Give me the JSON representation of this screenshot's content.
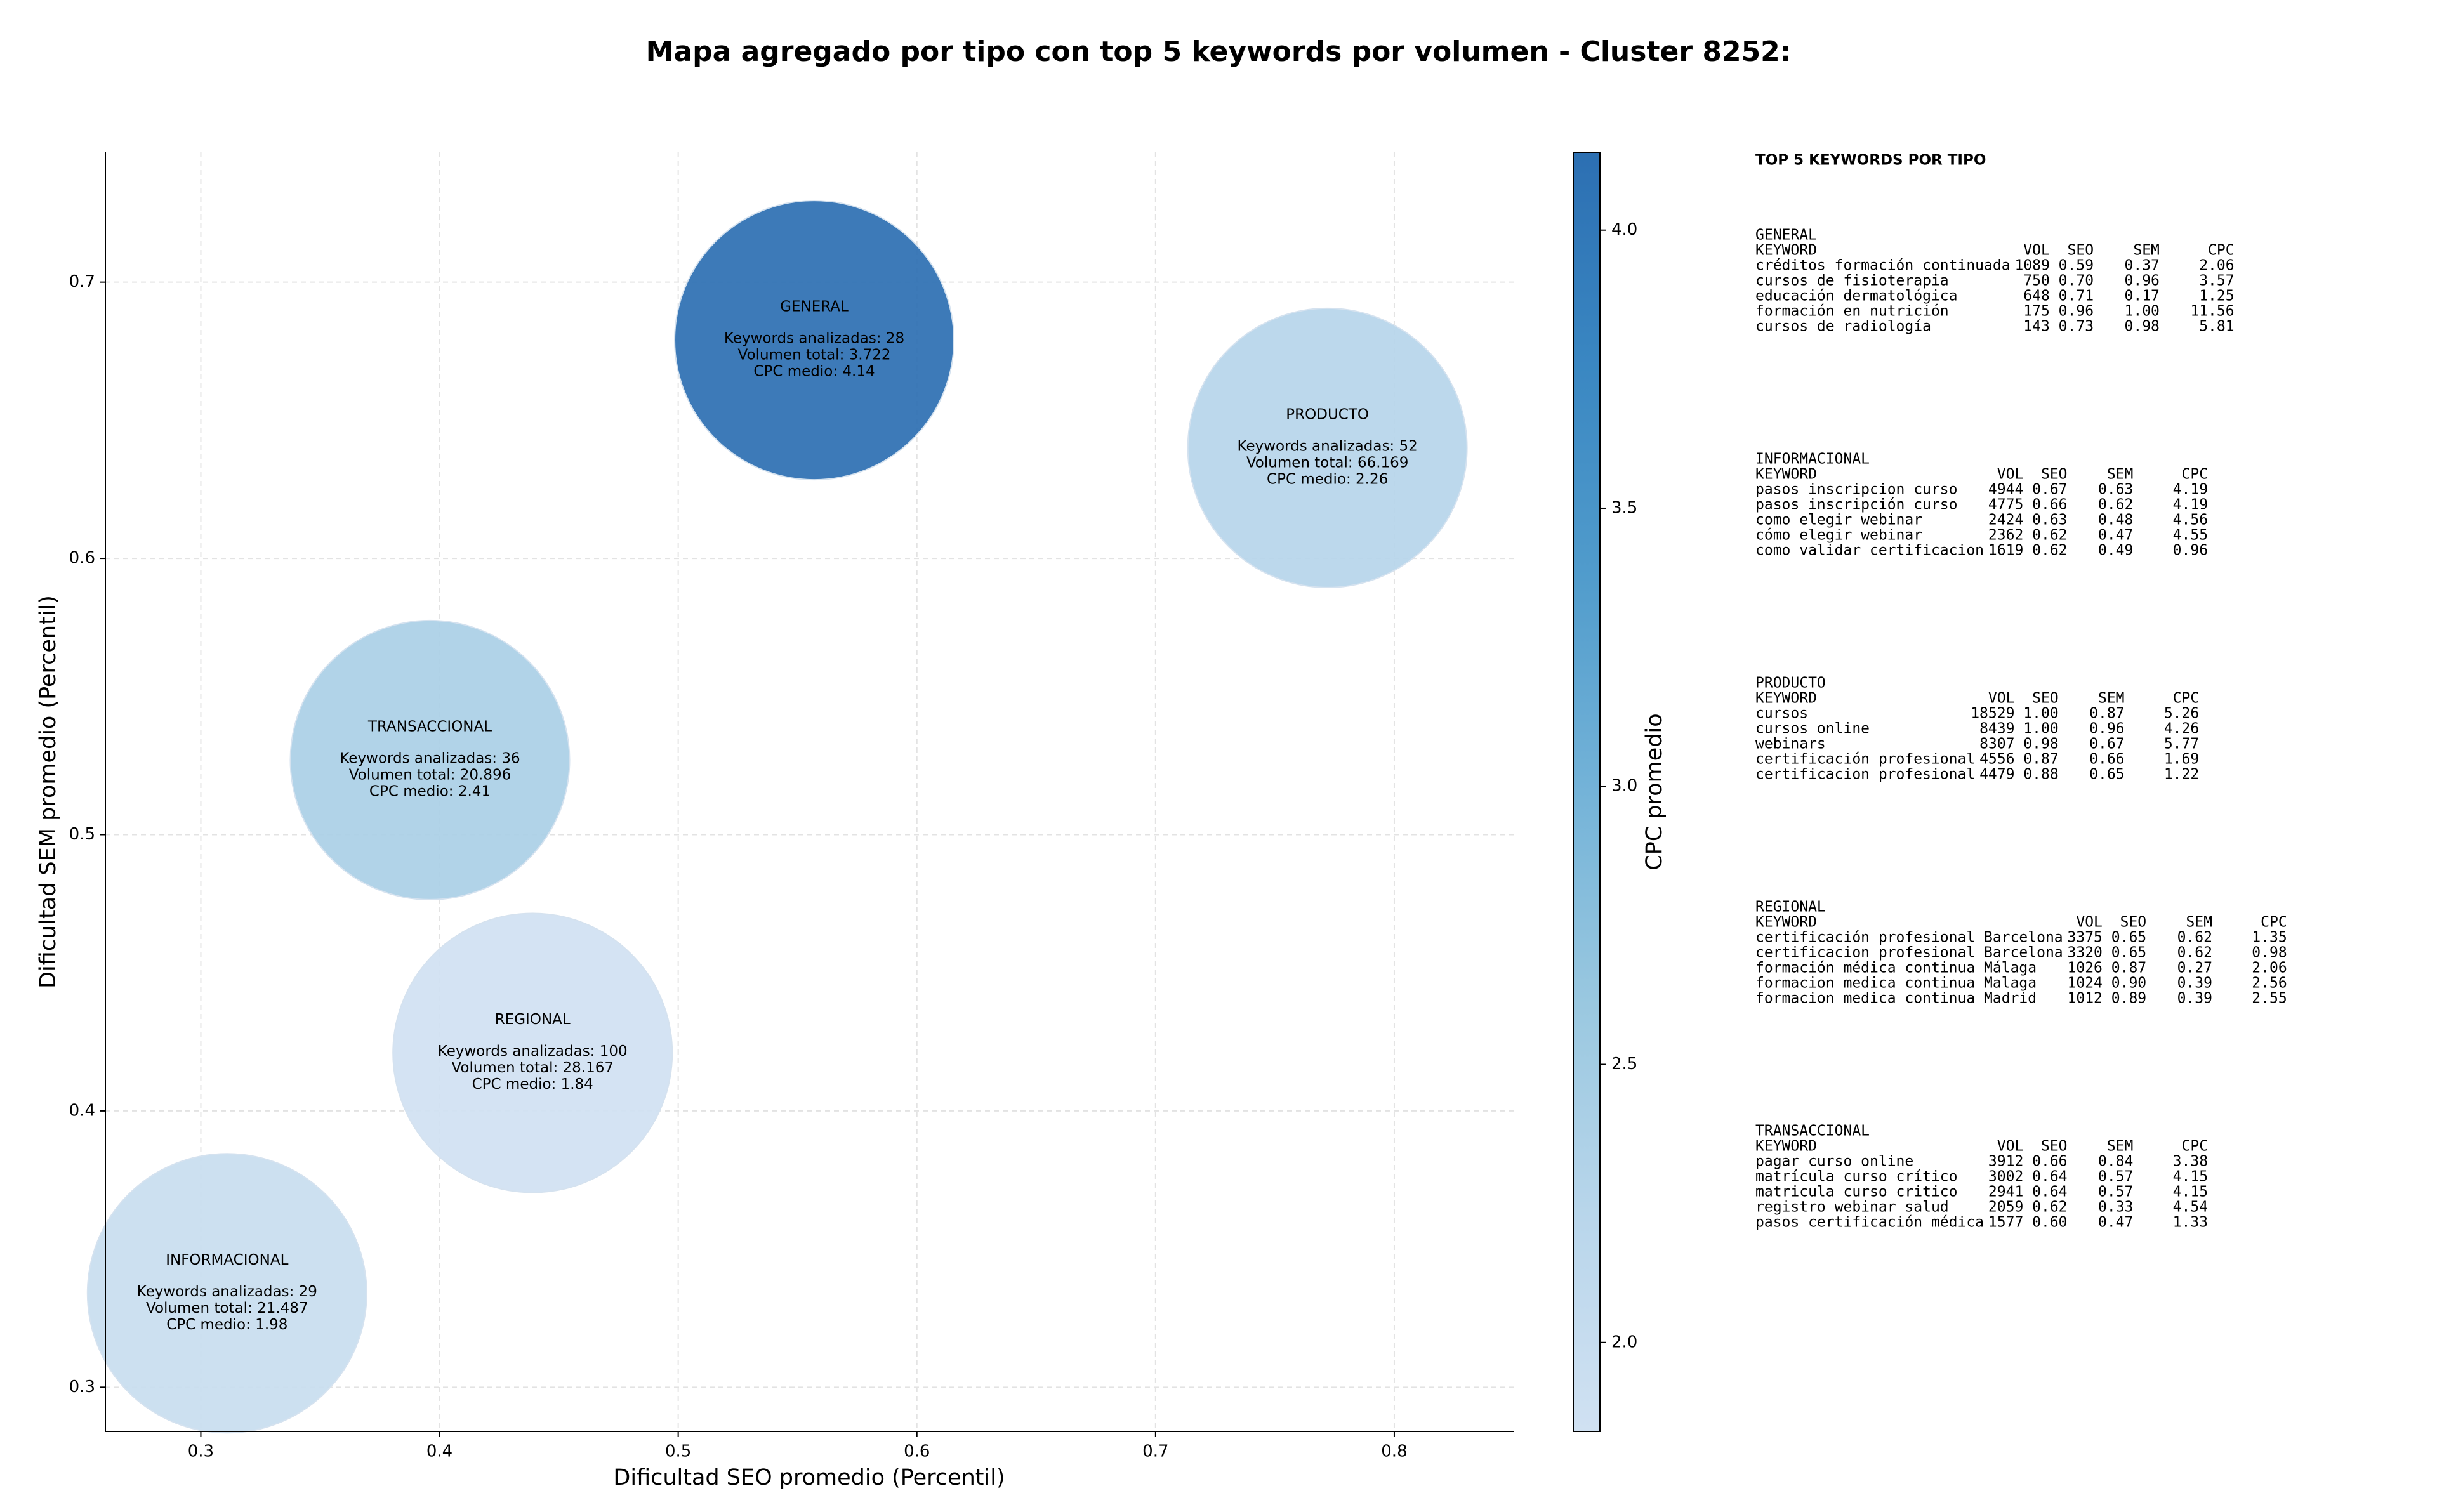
{
  "chart_data": {
    "type": "scatter",
    "title": "Mapa agregado por tipo con top 5 keywords por volumen - Cluster 8252:",
    "xlabel": "Dificultad SEO promedio (Percentil)",
    "ylabel": "Dificultad SEM promedio (Percentil)",
    "xlim": [
      0.26,
      0.85
    ],
    "ylim": [
      0.284,
      0.747
    ],
    "xticks": [
      0.3,
      0.4,
      0.5,
      0.6,
      0.7,
      0.8
    ],
    "yticks": [
      0.3,
      0.4,
      0.5,
      0.6,
      0.7
    ],
    "grid": true,
    "colorbar": {
      "label": "CPC promedio",
      "clim": [
        1.84,
        4.14
      ],
      "ticks": [
        {
          "value": 2,
          "label": "2.0"
        },
        {
          "value": 2.5,
          "label": "2.5"
        },
        {
          "value": 3,
          "label": "3.0"
        },
        {
          "value": 3.5,
          "label": "3.5"
        },
        {
          "value": 4,
          "label": "4.0"
        }
      ],
      "colors": [
        "#d0e1f2",
        "#b9d6eb",
        "#9ac8e0",
        "#74b3d8",
        "#519ccc",
        "#3a87c2",
        "#2c6fb2"
      ]
    },
    "points": [
      {
        "name": "GENERAL",
        "x": 0.557,
        "y": 0.679,
        "cpc": 4.14,
        "lines": [
          "Keywords analizadas: 28",
          "Volumen total: 3.722",
          "CPC medio: 4.14"
        ]
      },
      {
        "name": "PRODUCTO",
        "x": 0.772,
        "y": 0.64,
        "cpc": 2.26,
        "lines": [
          "Keywords analizadas: 52",
          "Volumen total: 66.169",
          "CPC medio: 2.26"
        ]
      },
      {
        "name": "TRANSACCIONAL",
        "x": 0.396,
        "y": 0.527,
        "cpc": 2.41,
        "lines": [
          "Keywords analizadas: 36",
          "Volumen total: 20.896",
          "CPC medio: 2.41"
        ]
      },
      {
        "name": "REGIONAL",
        "x": 0.439,
        "y": 0.421,
        "cpc": 1.84,
        "lines": [
          "Keywords analizadas: 100",
          "Volumen total: 28.167",
          "CPC medio: 1.84"
        ]
      },
      {
        "name": "INFORMACIONAL",
        "x": 0.311,
        "y": 0.334,
        "cpc": 1.98,
        "lines": [
          "Keywords analizadas: 29",
          "Volumen total: 21.487",
          "CPC medio: 1.98"
        ]
      }
    ]
  },
  "table": {
    "title": "TOP 5 KEYWORDS POR TIPO",
    "header": [
      "KEYWORD",
      "VOL",
      "SEO",
      "SEM",
      "CPC"
    ],
    "groups": [
      {
        "name": "GENERAL",
        "rows": [
          [
            "créditos formación continuada",
            "1089",
            "0.59",
            "0.37",
            "2.06"
          ],
          [
            "cursos de fisioterapia",
            "750",
            "0.70",
            "0.96",
            "3.57"
          ],
          [
            "educación dermatológica",
            "648",
            "0.71",
            "0.17",
            "1.25"
          ],
          [
            "formación en nutrición",
            "175",
            "0.96",
            "1.00",
            "11.56"
          ],
          [
            "cursos de radiología",
            "143",
            "0.73",
            "0.98",
            "5.81"
          ]
        ]
      },
      {
        "name": "INFORMACIONAL",
        "rows": [
          [
            "pasos inscripcion curso",
            "4944",
            "0.67",
            "0.63",
            "4.19"
          ],
          [
            "pasos inscripción curso",
            "4775",
            "0.66",
            "0.62",
            "4.19"
          ],
          [
            "como elegir webinar",
            "2424",
            "0.63",
            "0.48",
            "4.56"
          ],
          [
            "cómo elegir webinar",
            "2362",
            "0.62",
            "0.47",
            "4.55"
          ],
          [
            "como validar certificacion",
            "1619",
            "0.62",
            "0.49",
            "0.96"
          ]
        ]
      },
      {
        "name": "PRODUCTO",
        "rows": [
          [
            "cursos",
            "18529",
            "1.00",
            "0.87",
            "5.26"
          ],
          [
            "cursos online",
            "8439",
            "1.00",
            "0.96",
            "4.26"
          ],
          [
            "webinars",
            "8307",
            "0.98",
            "0.67",
            "5.77"
          ],
          [
            "certificación profesional",
            "4556",
            "0.87",
            "0.66",
            "1.69"
          ],
          [
            "certificacion profesional",
            "4479",
            "0.88",
            "0.65",
            "1.22"
          ]
        ]
      },
      {
        "name": "REGIONAL",
        "rows": [
          [
            "certificación profesional Barcelona",
            "3375",
            "0.65",
            "0.62",
            "1.35"
          ],
          [
            "certificacion profesional Barcelona",
            "3320",
            "0.65",
            "0.62",
            "0.98"
          ],
          [
            "formación médica continua Málaga",
            "1026",
            "0.87",
            "0.27",
            "2.06"
          ],
          [
            "formacion medica continua Malaga",
            "1024",
            "0.90",
            "0.39",
            "2.56"
          ],
          [
            "formacion medica continua Madrid",
            "1012",
            "0.89",
            "0.39",
            "2.55"
          ]
        ]
      },
      {
        "name": "TRANSACCIONAL",
        "rows": [
          [
            "pagar curso online",
            "3912",
            "0.66",
            "0.84",
            "3.38"
          ],
          [
            "matrícula curso crítico",
            "3002",
            "0.64",
            "0.57",
            "4.15"
          ],
          [
            "matricula curso critico",
            "2941",
            "0.64",
            "0.57",
            "4.15"
          ],
          [
            "registro webinar salud",
            "2059",
            "0.62",
            "0.33",
            "4.54"
          ],
          [
            "pasos certificación médica",
            "1577",
            "0.60",
            "0.47",
            "1.33"
          ]
        ]
      }
    ]
  }
}
